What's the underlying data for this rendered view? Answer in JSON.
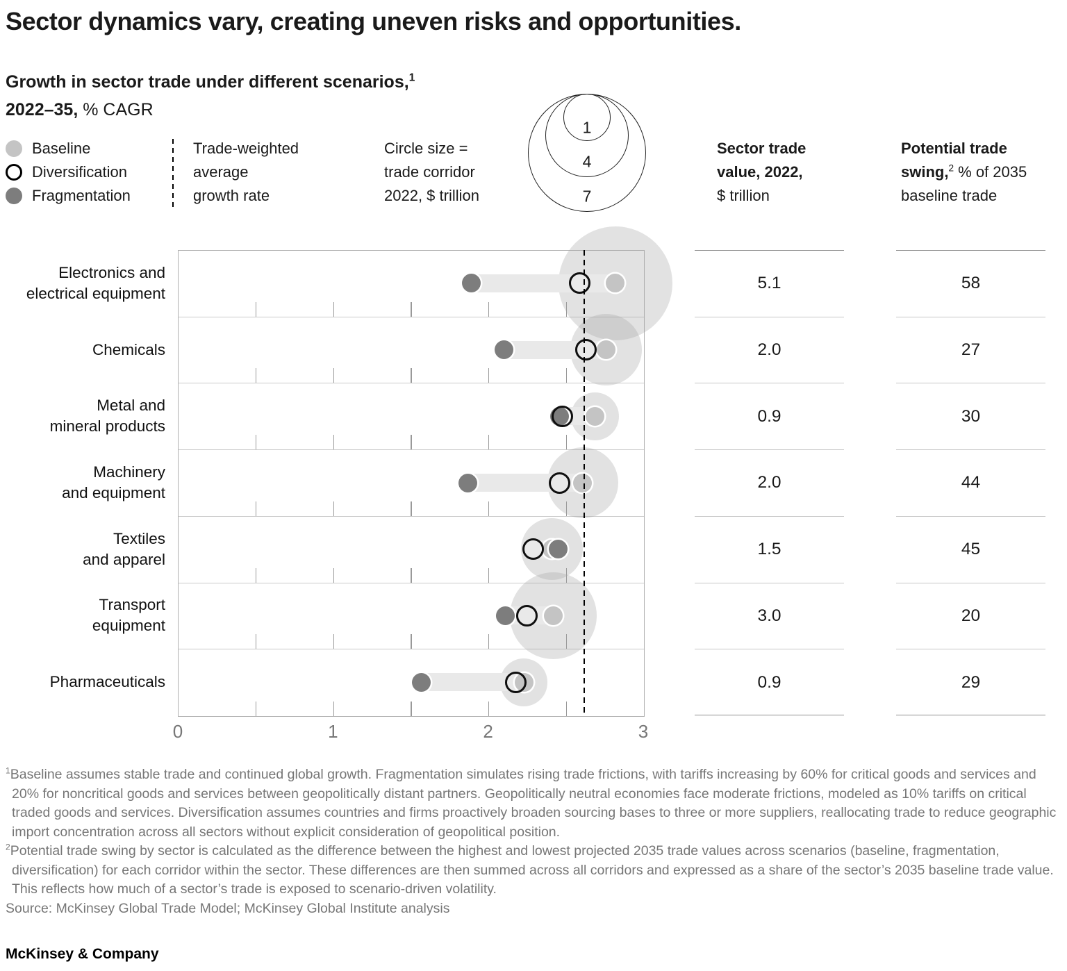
{
  "page": {
    "title": "Sector dynamics vary, creating uneven risks and opportunities.",
    "subtitle_line1": "Growth in sector trade under different scenarios,",
    "subtitle_sup": "1",
    "subtitle_line2_bold": "2022–35,",
    "subtitle_line2_rest": " % CAGR",
    "brand": "McKinsey & Company"
  },
  "legend": {
    "scenarios": [
      {
        "label": "Baseline",
        "key": "baseline"
      },
      {
        "label": "Diversification",
        "key": "diversification"
      },
      {
        "label": "Fragmentation",
        "key": "fragmentation"
      }
    ],
    "average_lines": [
      "Trade-weighted",
      "average",
      "growth rate"
    ],
    "size_lines": [
      "Circle size =",
      "trade corridor",
      "2022, $ trillion"
    ],
    "size_circle_values": [
      "1",
      "4",
      "7"
    ]
  },
  "columns": {
    "trade_value_header": {
      "line1": "Sector trade",
      "line2": "value, 2022,",
      "line3": "$ trillion"
    },
    "swing_header": {
      "line1": "Potential trade",
      "line2_bold": "swing,",
      "line2_sup": "2",
      "line2_rest": " % of 2035",
      "line3": "baseline trade"
    }
  },
  "chart_data": {
    "type": "scatter",
    "subtype": "dumbbell-bubble",
    "x_unit": "% CAGR 2022-35",
    "xlim": [
      0,
      3
    ],
    "x_ticks": [
      "0",
      "1",
      "2",
      "3"
    ],
    "x_minor_ticks": [
      0.5,
      1.0,
      1.5,
      2.0,
      2.5
    ],
    "trade_weighted_average": 2.62,
    "series_legend": [
      "Baseline",
      "Diversification",
      "Fragmentation"
    ],
    "rows": [
      {
        "sector_lines": [
          "Electronics and",
          "electrical equipment"
        ],
        "baseline": 2.82,
        "diversification": 2.59,
        "fragmentation": 1.89,
        "circle_size_trillion": 5.1,
        "trade_value_2022": "5.1",
        "trade_swing_pct": "58"
      },
      {
        "sector_lines": [
          "Chemicals"
        ],
        "baseline": 2.76,
        "diversification": 2.63,
        "fragmentation": 2.1,
        "circle_size_trillion": 2.0,
        "trade_value_2022": "2.0",
        "trade_swing_pct": "27"
      },
      {
        "sector_lines": [
          "Metal and",
          "mineral products"
        ],
        "baseline": 2.69,
        "diversification": 2.48,
        "fragmentation": 2.46,
        "circle_size_trillion": 0.9,
        "trade_value_2022": "0.9",
        "trade_swing_pct": "30"
      },
      {
        "sector_lines": [
          "Machinery",
          "and equipment"
        ],
        "baseline": 2.61,
        "diversification": 2.46,
        "fragmentation": 1.87,
        "circle_size_trillion": 2.0,
        "trade_value_2022": "2.0",
        "trade_swing_pct": "44"
      },
      {
        "sector_lines": [
          "Textiles",
          "and apparel"
        ],
        "baseline": 2.41,
        "diversification": 2.29,
        "fragmentation": 2.45,
        "circle_size_trillion": 1.5,
        "trade_value_2022": "1.5",
        "trade_swing_pct": "45"
      },
      {
        "sector_lines": [
          "Transport",
          "equipment"
        ],
        "baseline": 2.42,
        "diversification": 2.25,
        "fragmentation": 2.11,
        "circle_size_trillion": 3.0,
        "trade_value_2022": "3.0",
        "trade_swing_pct": "20"
      },
      {
        "sector_lines": [
          "Pharmaceuticals"
        ],
        "baseline": 2.23,
        "diversification": 2.18,
        "fragmentation": 1.57,
        "circle_size_trillion": 0.9,
        "trade_value_2022": "0.9",
        "trade_swing_pct": "29"
      }
    ],
    "colors": {
      "baseline": "#c4c4c4",
      "fragmentation": "#7d7d7d",
      "diversification_ring": "#0f0f0f",
      "size_circle": "rgba(166,166,166,0.32)",
      "stem": "#e9e9e9",
      "average_line": "#000000"
    }
  },
  "footnotes": [
    {
      "sup": "1",
      "text": "Baseline assumes stable trade and continued global growth. Fragmentation simulates rising trade frictions, with tariffs increasing by 60% for critical goods and services and 20% for noncritical goods and services between geopolitically distant partners. Geopolitically neutral economies face moderate frictions, modeled as 10% tariffs on critical traded goods and services. Diversification assumes countries and firms proactively broaden sourcing bases to three or more suppliers, reallocating trade to reduce geographic import concentration across all sectors without explicit consideration of geopolitical position."
    },
    {
      "sup": "2",
      "text": "Potential trade swing by sector is calculated as the difference between the highest and lowest projected 2035 trade values across scenarios (baseline, fragmentation, diversification) for each corridor within the sector. These differences are then summed across all corridors and expressed as a share of the sector’s 2035 baseline trade value. This reflects how much of a sector’s trade is exposed to scenario-driven volatility."
    }
  ],
  "source": "Source: McKinsey Global Trade Model; McKinsey Global Institute analysis"
}
